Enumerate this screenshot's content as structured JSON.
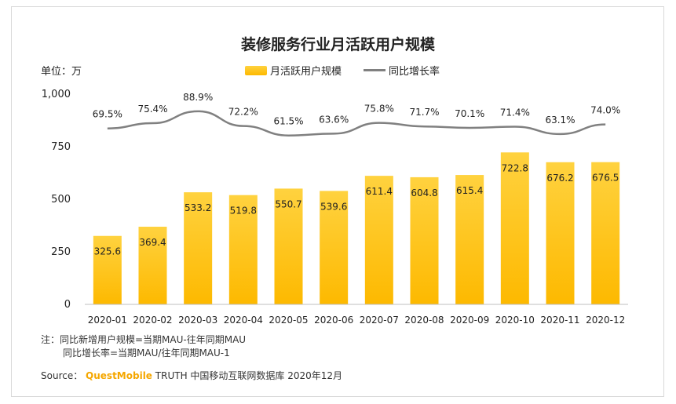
{
  "title": "装修服务行业月活跃用户规模",
  "unit": "单位：万",
  "legend": {
    "bar_label": "月活跃用户规模",
    "line_label": "同比增长率"
  },
  "notes": {
    "line1": "注：同比新增用户规模=当期MAU-往年同期MAU",
    "line2": "同比增长率=当期MAU/往年同期MAU-1"
  },
  "source": {
    "prefix": "Source：",
    "brand": "QuestMobile",
    "suffix": "TRUTH 中国移动互联网数据库 2020年12月"
  },
  "colors": {
    "bar_top": "#ffd23f",
    "bar_bottom": "#fdb900",
    "line": "#808080"
  },
  "chart_data": {
    "type": "bar",
    "categories": [
      "2020-01",
      "2020-02",
      "2020-03",
      "2020-04",
      "2020-05",
      "2020-06",
      "2020-07",
      "2020-08",
      "2020-09",
      "2020-10",
      "2020-11",
      "2020-12"
    ],
    "series": [
      {
        "name": "月活跃用户规模",
        "type": "bar",
        "values": [
          325.6,
          369.4,
          533.2,
          519.8,
          550.7,
          539.6,
          611.4,
          604.8,
          615.4,
          722.8,
          676.2,
          676.5
        ]
      },
      {
        "name": "同比增长率",
        "type": "line",
        "values": [
          69.5,
          75.4,
          88.9,
          72.2,
          61.5,
          63.6,
          75.8,
          71.7,
          70.1,
          71.4,
          63.1,
          74.0
        ],
        "labels": [
          "69.5%",
          "75.4%",
          "88.9%",
          "72.2%",
          "61.5%",
          "63.6%",
          "75.8%",
          "71.7%",
          "70.1%",
          "71.4%",
          "63.1%",
          "74.0%"
        ]
      }
    ],
    "yticks": [
      "0",
      "250",
      "500",
      "750",
      "1,000"
    ],
    "ylim": [
      0,
      1000
    ],
    "grid": false
  }
}
